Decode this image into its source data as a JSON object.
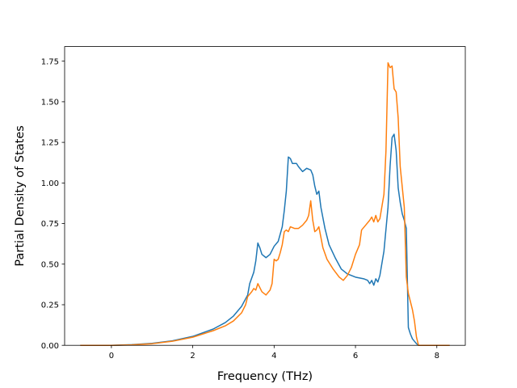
{
  "chart_data": {
    "type": "line",
    "title": "",
    "xlabel": "Frequency (THz)",
    "ylabel": "Partial Density of States",
    "xlim": [
      -1.15,
      8.7
    ],
    "ylim": [
      0,
      1.84
    ],
    "xticks": [
      0,
      2,
      4,
      6,
      8
    ],
    "yticks": [
      0.0,
      0.25,
      0.5,
      0.75,
      1.0,
      1.25,
      1.5,
      1.75
    ],
    "xtick_labels": [
      "0",
      "2",
      "4",
      "6",
      "8"
    ],
    "ytick_labels": [
      "0.00",
      "0.25",
      "0.50",
      "0.75",
      "1.00",
      "1.25",
      "1.50",
      "1.75"
    ],
    "grid": false,
    "legend": "none",
    "series": [
      {
        "color": "#1f77b4",
        "points": [
          [
            -0.75,
            0.0
          ],
          [
            0.0,
            0.0
          ],
          [
            0.5,
            0.004
          ],
          [
            1.0,
            0.012
          ],
          [
            1.5,
            0.028
          ],
          [
            2.0,
            0.055
          ],
          [
            2.5,
            0.1
          ],
          [
            2.8,
            0.14
          ],
          [
            3.0,
            0.18
          ],
          [
            3.2,
            0.24
          ],
          [
            3.35,
            0.31
          ],
          [
            3.4,
            0.38
          ],
          [
            3.5,
            0.45
          ],
          [
            3.55,
            0.52
          ],
          [
            3.6,
            0.63
          ],
          [
            3.65,
            0.6
          ],
          [
            3.7,
            0.56
          ],
          [
            3.8,
            0.54
          ],
          [
            3.9,
            0.56
          ],
          [
            4.0,
            0.61
          ],
          [
            4.1,
            0.64
          ],
          [
            4.2,
            0.73
          ],
          [
            4.25,
            0.83
          ],
          [
            4.3,
            0.95
          ],
          [
            4.35,
            1.16
          ],
          [
            4.4,
            1.15
          ],
          [
            4.45,
            1.12
          ],
          [
            4.55,
            1.12
          ],
          [
            4.6,
            1.1
          ],
          [
            4.7,
            1.07
          ],
          [
            4.8,
            1.09
          ],
          [
            4.9,
            1.08
          ],
          [
            4.95,
            1.05
          ],
          [
            5.0,
            0.98
          ],
          [
            5.05,
            0.93
          ],
          [
            5.1,
            0.95
          ],
          [
            5.15,
            0.85
          ],
          [
            5.25,
            0.72
          ],
          [
            5.35,
            0.62
          ],
          [
            5.5,
            0.54
          ],
          [
            5.65,
            0.47
          ],
          [
            5.8,
            0.44
          ],
          [
            6.0,
            0.42
          ],
          [
            6.2,
            0.41
          ],
          [
            6.3,
            0.4
          ],
          [
            6.35,
            0.38
          ],
          [
            6.4,
            0.4
          ],
          [
            6.45,
            0.37
          ],
          [
            6.5,
            0.41
          ],
          [
            6.55,
            0.39
          ],
          [
            6.6,
            0.43
          ],
          [
            6.7,
            0.58
          ],
          [
            6.8,
            0.85
          ],
          [
            6.85,
            1.1
          ],
          [
            6.9,
            1.28
          ],
          [
            6.95,
            1.3
          ],
          [
            7.0,
            1.2
          ],
          [
            7.05,
            0.97
          ],
          [
            7.1,
            0.88
          ],
          [
            7.15,
            0.81
          ],
          [
            7.2,
            0.77
          ],
          [
            7.25,
            0.72
          ],
          [
            7.3,
            0.11
          ],
          [
            7.35,
            0.07
          ],
          [
            7.4,
            0.04
          ],
          [
            7.5,
            0.01
          ],
          [
            7.55,
            0.0
          ],
          [
            8.3,
            0.0
          ]
        ]
      },
      {
        "color": "#ff7f0e",
        "points": [
          [
            -0.75,
            0.0
          ],
          [
            0.0,
            0.0
          ],
          [
            0.5,
            0.003
          ],
          [
            1.0,
            0.01
          ],
          [
            1.5,
            0.025
          ],
          [
            2.0,
            0.05
          ],
          [
            2.5,
            0.09
          ],
          [
            2.8,
            0.12
          ],
          [
            3.0,
            0.15
          ],
          [
            3.2,
            0.2
          ],
          [
            3.3,
            0.25
          ],
          [
            3.35,
            0.3
          ],
          [
            3.45,
            0.33
          ],
          [
            3.5,
            0.35
          ],
          [
            3.55,
            0.34
          ],
          [
            3.6,
            0.38
          ],
          [
            3.7,
            0.33
          ],
          [
            3.8,
            0.31
          ],
          [
            3.9,
            0.34
          ],
          [
            3.95,
            0.38
          ],
          [
            4.0,
            0.53
          ],
          [
            4.05,
            0.52
          ],
          [
            4.1,
            0.53
          ],
          [
            4.15,
            0.57
          ],
          [
            4.2,
            0.62
          ],
          [
            4.25,
            0.7
          ],
          [
            4.3,
            0.71
          ],
          [
            4.35,
            0.7
          ],
          [
            4.4,
            0.73
          ],
          [
            4.5,
            0.72
          ],
          [
            4.6,
            0.72
          ],
          [
            4.7,
            0.74
          ],
          [
            4.8,
            0.77
          ],
          [
            4.85,
            0.8
          ],
          [
            4.9,
            0.89
          ],
          [
            4.95,
            0.77
          ],
          [
            5.0,
            0.7
          ],
          [
            5.05,
            0.71
          ],
          [
            5.1,
            0.73
          ],
          [
            5.2,
            0.6
          ],
          [
            5.3,
            0.53
          ],
          [
            5.45,
            0.47
          ],
          [
            5.6,
            0.42
          ],
          [
            5.7,
            0.4
          ],
          [
            5.8,
            0.43
          ],
          [
            5.9,
            0.48
          ],
          [
            6.0,
            0.56
          ],
          [
            6.1,
            0.62
          ],
          [
            6.15,
            0.71
          ],
          [
            6.25,
            0.74
          ],
          [
            6.35,
            0.77
          ],
          [
            6.4,
            0.79
          ],
          [
            6.45,
            0.76
          ],
          [
            6.5,
            0.8
          ],
          [
            6.55,
            0.76
          ],
          [
            6.6,
            0.78
          ],
          [
            6.7,
            0.93
          ],
          [
            6.75,
            1.2
          ],
          [
            6.8,
            1.74
          ],
          [
            6.85,
            1.71
          ],
          [
            6.9,
            1.72
          ],
          [
            6.95,
            1.58
          ],
          [
            7.0,
            1.56
          ],
          [
            7.05,
            1.4
          ],
          [
            7.1,
            1.1
          ],
          [
            7.2,
            0.85
          ],
          [
            7.25,
            0.42
          ],
          [
            7.3,
            0.32
          ],
          [
            7.4,
            0.22
          ],
          [
            7.45,
            0.15
          ],
          [
            7.5,
            0.05
          ],
          [
            7.55,
            0.0
          ],
          [
            8.3,
            0.0
          ]
        ]
      }
    ]
  }
}
